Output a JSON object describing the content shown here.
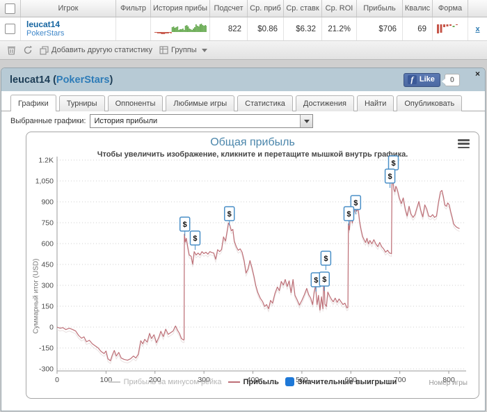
{
  "top_table": {
    "columns": [
      "",
      "Игрок",
      "Фильтр",
      "История прибы",
      "Подсчет",
      "Ср. приб",
      "Ср. ставк",
      "Ср. ROI",
      "Прибыль",
      "Квалис",
      "Форма",
      ""
    ],
    "row": {
      "player": "leucat14",
      "site": "PokerStars",
      "filter": "",
      "count": "822",
      "avg_profit": "$0.86",
      "avg_stake": "$6.32",
      "avg_roi": "21.2%",
      "profit": "$706",
      "qualif": "69",
      "close_label": "x"
    },
    "sparkline_values": [
      -1,
      -1,
      -2,
      -2,
      -2,
      -3,
      -3,
      -3,
      -2,
      -2,
      -2,
      -1,
      -2,
      7,
      8,
      6,
      7,
      8,
      3,
      4,
      4,
      5,
      3,
      9,
      10,
      8,
      5,
      4,
      3,
      5,
      7,
      11,
      9,
      8,
      11,
      12,
      10,
      9,
      10,
      9
    ],
    "form_values": [
      -13,
      -12,
      -4,
      -3,
      -2,
      2,
      -1
    ],
    "toolbar": {
      "add_stat": "Добавить другую статистику",
      "groups": "Группы"
    }
  },
  "panel": {
    "title": {
      "player": "leucat14",
      "open": " (",
      "site": "PokerStars",
      "close": ")"
    },
    "like_label": "Like",
    "like_count": "0",
    "close_label": "×",
    "tabs": [
      {
        "label": "Графики",
        "active": true
      },
      {
        "label": "Турниры",
        "active": false
      },
      {
        "label": "Оппоненты",
        "active": false
      },
      {
        "label": "Любимые игры",
        "active": false
      },
      {
        "label": "Статистика",
        "active": false
      },
      {
        "label": "Достижения",
        "active": false
      },
      {
        "label": "Найти",
        "active": false
      },
      {
        "label": "Опубликовать",
        "active": false
      }
    ],
    "selected_charts_label": "Выбранные графики:",
    "selected_chart_value": "История прибыли"
  },
  "chart_data": {
    "type": "line",
    "title": "Общая прибыль",
    "subtitle": "Чтобы увеличить изображение, кликните и перетащите мышкой внутрь графика.",
    "ylabel": "Суммарный итог (USD)",
    "xlabel": "Номер игры",
    "grid": "dotted",
    "ylim": [
      -300,
      1250
    ],
    "xlim": [
      0,
      835
    ],
    "y_ticks": [
      "1.2K",
      "1,050",
      "900",
      "750",
      "600",
      "450",
      "300",
      "150",
      "0",
      "-150",
      "-300"
    ],
    "y_tick_values": [
      1200,
      1050,
      900,
      750,
      600,
      450,
      300,
      150,
      0,
      -150,
      -300
    ],
    "x_ticks": [
      "0",
      "100",
      "200",
      "300",
      "400",
      "500",
      "600",
      "700",
      "800"
    ],
    "x_tick_values": [
      0,
      100,
      200,
      300,
      400,
      500,
      600,
      700,
      800
    ],
    "legend": [
      {
        "label": "Прибыль за минусом рейка",
        "swatch": "line",
        "color": "#c9c9c9",
        "text_style": "muted"
      },
      {
        "label": "Прибыль",
        "swatch": "line",
        "color": "#bd6e76",
        "text_style": "strong"
      },
      {
        "label": "Значительные выигрыши",
        "swatch": "box",
        "color": "#1e78d7",
        "text_style": "strong"
      }
    ],
    "win_marker_label": "$",
    "significant_wins": [
      {
        "game": 261,
        "value": 740
      },
      {
        "game": 282,
        "value": 640
      },
      {
        "game": 352,
        "value": 815
      },
      {
        "game": 549,
        "value": 495
      },
      {
        "game": 529,
        "value": 340
      },
      {
        "game": 546,
        "value": 345
      },
      {
        "game": 610,
        "value": 895
      },
      {
        "game": 596,
        "value": 815
      },
      {
        "game": 687,
        "value": 1180
      },
      {
        "game": 680,
        "value": 1085
      }
    ],
    "series": [
      {
        "name": "Прибыль",
        "color": "#bd6e76",
        "points": [
          [
            0,
            0
          ],
          [
            6,
            -8
          ],
          [
            12,
            -4
          ],
          [
            18,
            -18
          ],
          [
            25,
            -8
          ],
          [
            32,
            -18
          ],
          [
            38,
            -28
          ],
          [
            44,
            -60
          ],
          [
            50,
            -80
          ],
          [
            55,
            -70
          ],
          [
            60,
            -105
          ],
          [
            66,
            -95
          ],
          [
            72,
            -120
          ],
          [
            78,
            -135
          ],
          [
            84,
            -150
          ],
          [
            90,
            -175
          ],
          [
            96,
            -190
          ],
          [
            100,
            -172
          ],
          [
            104,
            -228
          ],
          [
            109,
            -242
          ],
          [
            113,
            -200
          ],
          [
            117,
            -168
          ],
          [
            121,
            -208
          ],
          [
            126,
            -182
          ],
          [
            131,
            -222
          ],
          [
            137,
            -232
          ],
          [
            144,
            -238
          ],
          [
            150,
            -228
          ],
          [
            156,
            -208
          ],
          [
            161,
            -222
          ],
          [
            166,
            -195
          ],
          [
            171,
            -98
          ],
          [
            175,
            -120
          ],
          [
            179,
            -88
          ],
          [
            184,
            -108
          ],
          [
            189,
            -45
          ],
          [
            193,
            -82
          ],
          [
            198,
            -55
          ],
          [
            203,
            -112
          ],
          [
            208,
            -72
          ],
          [
            212,
            -30
          ],
          [
            217,
            -68
          ],
          [
            222,
            -15
          ],
          [
            227,
            -52
          ],
          [
            232,
            -40
          ],
          [
            237,
            -28
          ],
          [
            242,
            8
          ],
          [
            246,
            -22
          ],
          [
            250,
            -45
          ],
          [
            254,
            -82
          ],
          [
            258,
            -92
          ],
          [
            259.5,
            -90
          ],
          [
            260,
            668
          ],
          [
            262,
            612
          ],
          [
            264,
            638
          ],
          [
            267,
            575
          ],
          [
            270,
            518
          ],
          [
            274,
            508
          ],
          [
            277,
            452
          ],
          [
            280,
            542
          ],
          [
            284,
            518
          ],
          [
            288,
            532
          ],
          [
            292,
            518
          ],
          [
            296,
            542
          ],
          [
            300,
            528
          ],
          [
            304,
            538
          ],
          [
            308,
            524
          ],
          [
            312,
            542
          ],
          [
            316,
            536
          ],
          [
            320,
            532
          ],
          [
            324,
            488
          ],
          [
            328,
            556
          ],
          [
            332,
            542
          ],
          [
            336,
            558
          ],
          [
            340,
            648
          ],
          [
            344,
            618
          ],
          [
            348,
            702
          ],
          [
            350,
            748
          ],
          [
            353,
            732
          ],
          [
            356,
            692
          ],
          [
            359,
            702
          ],
          [
            362,
            618
          ],
          [
            366,
            578
          ],
          [
            370,
            552
          ],
          [
            374,
            562
          ],
          [
            378,
            538
          ],
          [
            382,
            478
          ],
          [
            386,
            388
          ],
          [
            390,
            418
          ],
          [
            394,
            478
          ],
          [
            398,
            428
          ],
          [
            402,
            368
          ],
          [
            406,
            298
          ],
          [
            410,
            248
          ],
          [
            415,
            208
          ],
          [
            420,
            182
          ],
          [
            424,
            148
          ],
          [
            428,
            162
          ],
          [
            432,
            132
          ],
          [
            436,
            192
          ],
          [
            440,
            172
          ],
          [
            445,
            242
          ],
          [
            450,
            288
          ],
          [
            454,
            262
          ],
          [
            458,
            328
          ],
          [
            462,
            302
          ],
          [
            466,
            342
          ],
          [
            470,
            292
          ],
          [
            474,
            332
          ],
          [
            478,
            248
          ],
          [
            482,
            342
          ],
          [
            486,
            228
          ],
          [
            490,
            198
          ],
          [
            495,
            158
          ],
          [
            500,
            192
          ],
          [
            505,
            232
          ],
          [
            510,
            278
          ],
          [
            514,
            232
          ],
          [
            518,
            208
          ],
          [
            522,
            162
          ],
          [
            525,
            252
          ],
          [
            528,
            298
          ],
          [
            531,
            162
          ],
          [
            534,
            228
          ],
          [
            537,
            122
          ],
          [
            540,
            218
          ],
          [
            543,
            132
          ],
          [
            545,
            388
          ],
          [
            547,
            165
          ],
          [
            550,
            148
          ],
          [
            553,
            252
          ],
          [
            556,
            228
          ],
          [
            560,
            202
          ],
          [
            564,
            182
          ],
          [
            568,
            208
          ],
          [
            572,
            178
          ],
          [
            576,
            202
          ],
          [
            580,
            182
          ],
          [
            584,
            162
          ],
          [
            588,
            172
          ],
          [
            592,
            138
          ],
          [
            594,
            142
          ],
          [
            595,
            742
          ],
          [
            597,
            698
          ],
          [
            600,
            828
          ],
          [
            603,
            748
          ],
          [
            606,
            818
          ],
          [
            609,
            852
          ],
          [
            612,
            832
          ],
          [
            615,
            852
          ],
          [
            618,
            758
          ],
          [
            621,
            698
          ],
          [
            624,
            652
          ],
          [
            627,
            628
          ],
          [
            630,
            608
          ],
          [
            633,
            638
          ],
          [
            636,
            598
          ],
          [
            639,
            622
          ],
          [
            643,
            598
          ],
          [
            647,
            628
          ],
          [
            651,
            598
          ],
          [
            655,
            578
          ],
          [
            659,
            608
          ],
          [
            663,
            578
          ],
          [
            667,
            562
          ],
          [
            671,
            538
          ],
          [
            675,
            552
          ],
          [
            679,
            532
          ],
          [
            683,
            528
          ],
          [
            684,
            1028
          ],
          [
            686,
            1058
          ],
          [
            688,
            988
          ],
          [
            690,
            972
          ],
          [
            692,
            1012
          ],
          [
            695,
            988
          ],
          [
            699,
            928
          ],
          [
            703,
            888
          ],
          [
            707,
            928
          ],
          [
            711,
            852
          ],
          [
            715,
            798
          ],
          [
            719,
            868
          ],
          [
            723,
            812
          ],
          [
            727,
            788
          ],
          [
            731,
            808
          ],
          [
            735,
            858
          ],
          [
            739,
            902
          ],
          [
            743,
            838
          ],
          [
            747,
            792
          ],
          [
            751,
            878
          ],
          [
            755,
            848
          ],
          [
            759,
            798
          ],
          [
            763,
            792
          ],
          [
            767,
            808
          ],
          [
            771,
            788
          ],
          [
            775,
            798
          ],
          [
            779,
            898
          ],
          [
            783,
            972
          ],
          [
            786,
            982
          ],
          [
            789,
            938
          ],
          [
            792,
            878
          ],
          [
            795,
            868
          ],
          [
            798,
            892
          ],
          [
            801,
            878
          ],
          [
            804,
            828
          ],
          [
            807,
            788
          ],
          [
            810,
            742
          ],
          [
            813,
            728
          ],
          [
            816,
            718
          ],
          [
            819,
            712
          ],
          [
            822,
            708
          ]
        ]
      }
    ]
  },
  "colors": {
    "line_red": "#bd6e76",
    "line_rake": "#e9e1e1",
    "win_box_border": "#4a8fc7",
    "legend_blue": "#1e78d7",
    "spark_green": "#6fae5a",
    "spark_red": "#c65548",
    "grid": "#cfcfcf",
    "axis": "#9a9a9a",
    "tick_text": "#4a4a4a"
  }
}
